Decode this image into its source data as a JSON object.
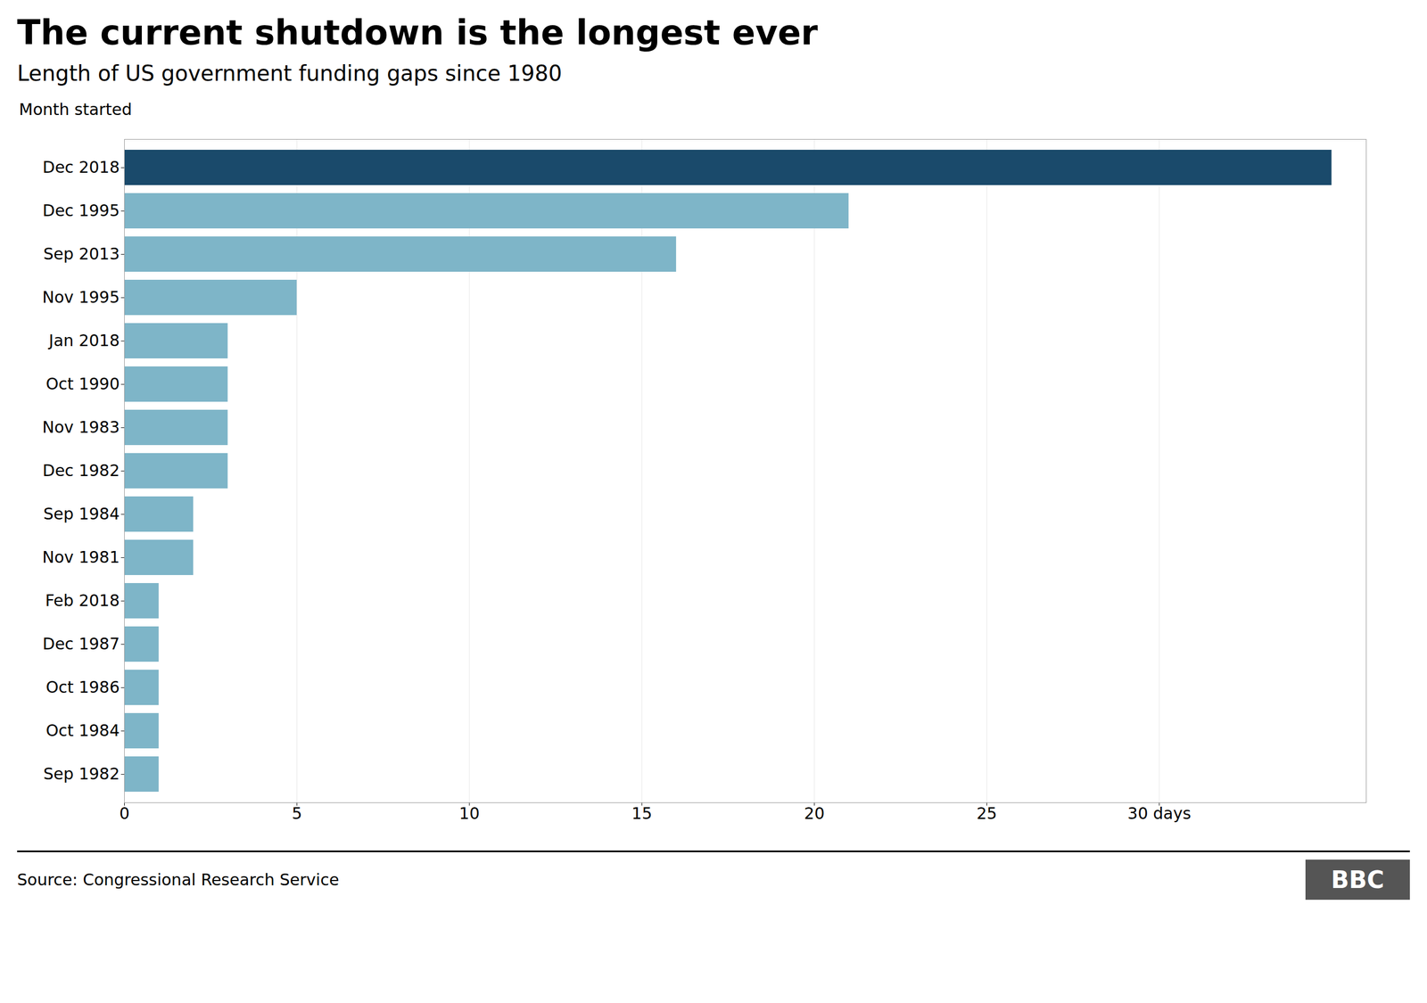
{
  "chart_data": {
    "type": "bar",
    "orientation": "horizontal",
    "title": "The current shutdown is the longest ever",
    "subtitle": "Length of US government funding gaps since 1980",
    "ylabel": "Month started",
    "source": "Source: Congressional Research Service",
    "annotations": [
      "BBC"
    ],
    "categories": [
      "Dec 2018",
      "Dec 1995",
      "Sep 2013",
      "Nov 1995",
      "Jan 2018",
      "Oct 1990",
      "Nov 1983",
      "Dec 1982",
      "Sep 1984",
      "Nov 1981",
      "Feb 2018",
      "Dec 1987",
      "Oct 1986",
      "Oct 1984",
      "Sep 1982"
    ],
    "values": [
      35,
      21,
      16,
      5,
      3,
      3,
      3,
      3,
      2,
      2,
      1,
      1,
      1,
      1,
      1
    ],
    "colors": [
      "#1a4a6b",
      "#7eb5c8",
      "#7eb5c8",
      "#7eb5c8",
      "#7eb5c8",
      "#7eb5c8",
      "#7eb5c8",
      "#7eb5c8",
      "#7eb5c8",
      "#7eb5c8",
      "#7eb5c8",
      "#7eb5c8",
      "#7eb5c8",
      "#7eb5c8",
      "#7eb5c8"
    ],
    "xlim": [
      0,
      36
    ],
    "xticks": [
      0,
      5,
      10,
      15,
      20,
      25,
      {
        "value": 30,
        "label": "30 days"
      }
    ],
    "grid": true
  }
}
